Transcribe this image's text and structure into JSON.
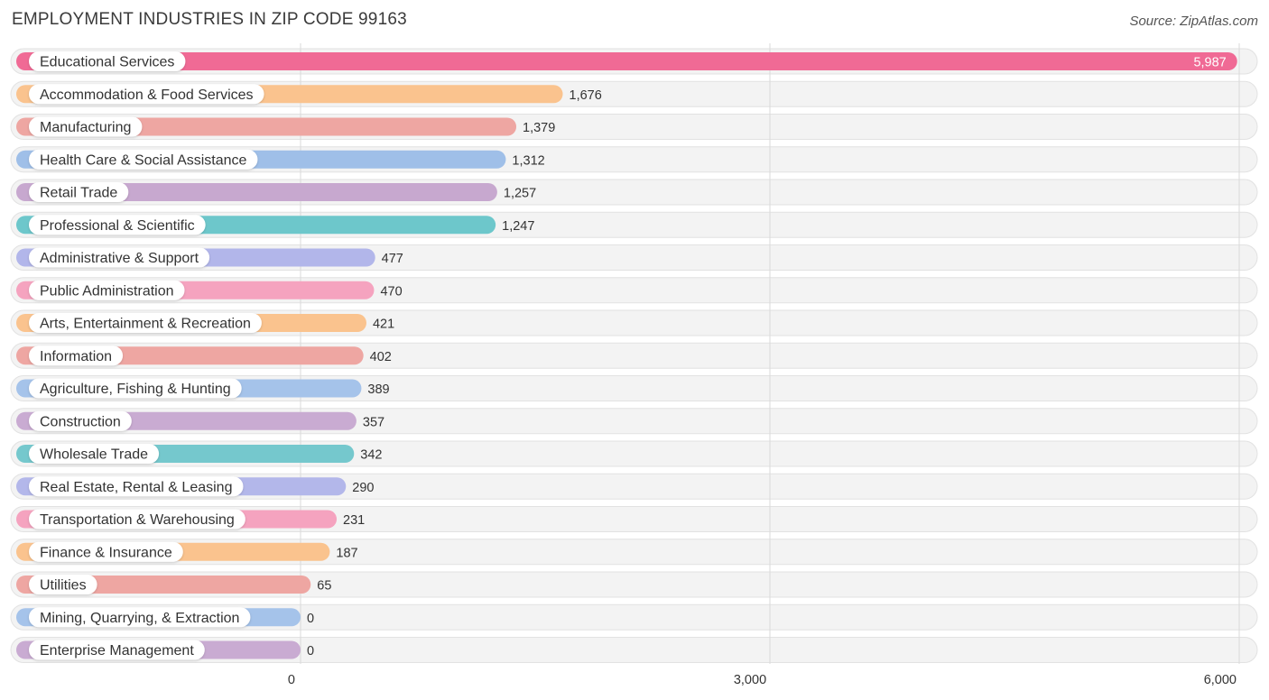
{
  "header": {
    "title": "EMPLOYMENT INDUSTRIES IN ZIP CODE 99163",
    "source": "Source: ZipAtlas.com"
  },
  "chart_data": {
    "type": "bar",
    "orientation": "horizontal",
    "title": "EMPLOYMENT INDUSTRIES IN ZIP CODE 99163",
    "xlabel": "",
    "ylabel": "",
    "xlim": [
      0,
      6000
    ],
    "xticks": [
      0,
      3000,
      6000
    ],
    "xtick_labels": [
      "0",
      "3,000",
      "6,000"
    ],
    "grid": true,
    "categories": [
      "Educational Services",
      "Accommodation & Food Services",
      "Manufacturing",
      "Health Care & Social Assistance",
      "Retail Trade",
      "Professional & Scientific",
      "Administrative & Support",
      "Public Administration",
      "Arts, Entertainment & Recreation",
      "Information",
      "Agriculture, Fishing & Hunting",
      "Construction",
      "Wholesale Trade",
      "Real Estate, Rental & Leasing",
      "Transportation & Warehousing",
      "Finance & Insurance",
      "Utilities",
      "Mining, Quarrying, & Extraction",
      "Enterprise Management"
    ],
    "values": [
      5987,
      1676,
      1379,
      1312,
      1257,
      1247,
      477,
      470,
      421,
      402,
      389,
      357,
      342,
      290,
      231,
      187,
      65,
      0,
      0
    ],
    "value_labels": [
      "5,987",
      "1,676",
      "1,379",
      "1,312",
      "1,257",
      "1,247",
      "477",
      "470",
      "421",
      "402",
      "389",
      "357",
      "342",
      "290",
      "231",
      "187",
      "65",
      "0",
      "0"
    ],
    "colors": [
      "#f06a95",
      "#fac38e",
      "#eea6a2",
      "#9fbfe8",
      "#c7a8cf",
      "#6dc7cb",
      "#b2b6ea",
      "#f5a3bf",
      "#fac38e",
      "#eea6a2",
      "#a5c3ea",
      "#c9abd2",
      "#75c8cd",
      "#b3b7ea",
      "#f5a3bf",
      "#fac38e",
      "#eea6a2",
      "#a5c3ea",
      "#c9abd2"
    ]
  }
}
